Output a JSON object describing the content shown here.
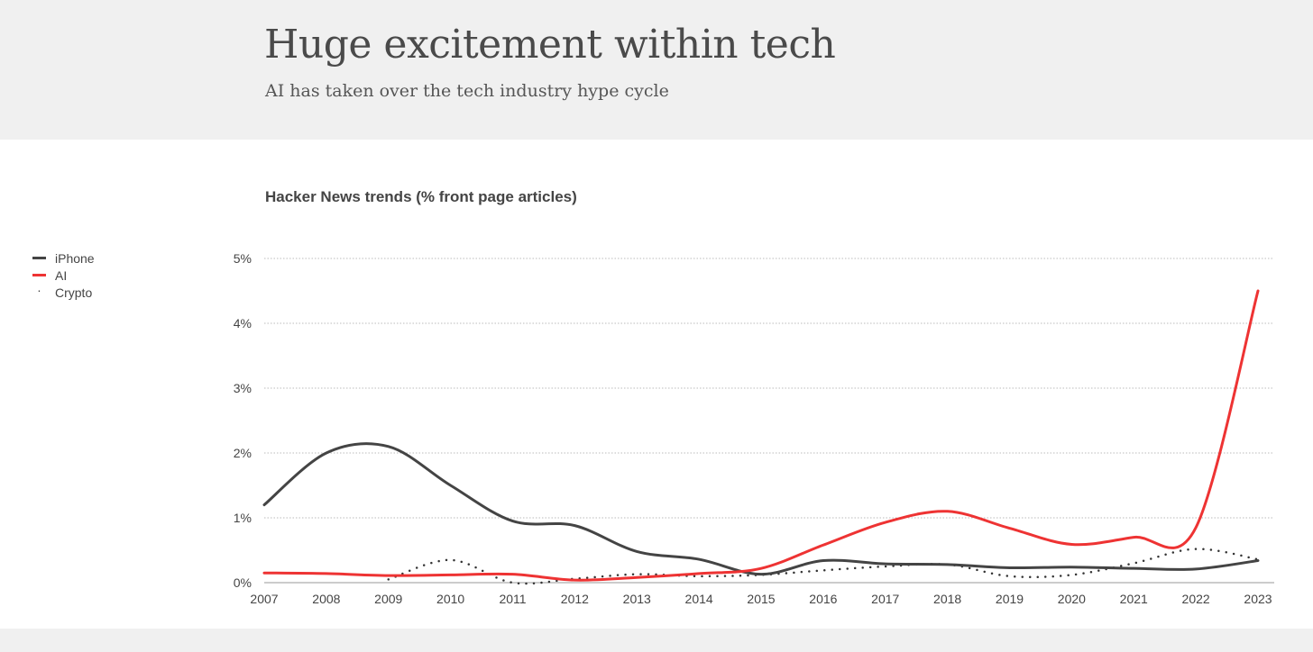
{
  "header": {
    "title": "Huge excitement within tech",
    "subtitle": "AI has taken over the tech industry hype cycle"
  },
  "chart_data": {
    "type": "line",
    "title": "Hacker News trends (% front page articles)",
    "xlabel": "",
    "ylabel": "",
    "x": [
      2007,
      2008,
      2009,
      2010,
      2011,
      2012,
      2013,
      2014,
      2015,
      2016,
      2017,
      2018,
      2019,
      2020,
      2021,
      2022,
      2023
    ],
    "ylim": [
      0,
      5
    ],
    "yticks": [
      "0%",
      "1%",
      "2%",
      "3%",
      "4%",
      "5%"
    ],
    "grid": true,
    "legend_position": "left",
    "series": [
      {
        "name": "iPhone",
        "color": "#444444",
        "style": "solid",
        "values": [
          1.2,
          2.0,
          2.1,
          1.5,
          0.95,
          0.88,
          0.48,
          0.36,
          0.13,
          0.34,
          0.29,
          0.28,
          0.23,
          0.24,
          0.22,
          0.21,
          0.34
        ]
      },
      {
        "name": "AI",
        "color": "#ee3333",
        "style": "solid",
        "values": [
          0.15,
          0.14,
          0.11,
          0.12,
          0.13,
          0.04,
          0.08,
          0.14,
          0.22,
          0.58,
          0.93,
          1.1,
          0.84,
          0.59,
          0.7,
          0.85,
          4.5
        ]
      },
      {
        "name": "Crypto",
        "color": "#333333",
        "style": "dotted",
        "values": [
          null,
          null,
          0.05,
          0.35,
          0.0,
          0.06,
          0.13,
          0.1,
          0.12,
          0.19,
          0.25,
          0.28,
          0.1,
          0.12,
          0.3,
          0.52,
          0.36
        ]
      }
    ]
  }
}
